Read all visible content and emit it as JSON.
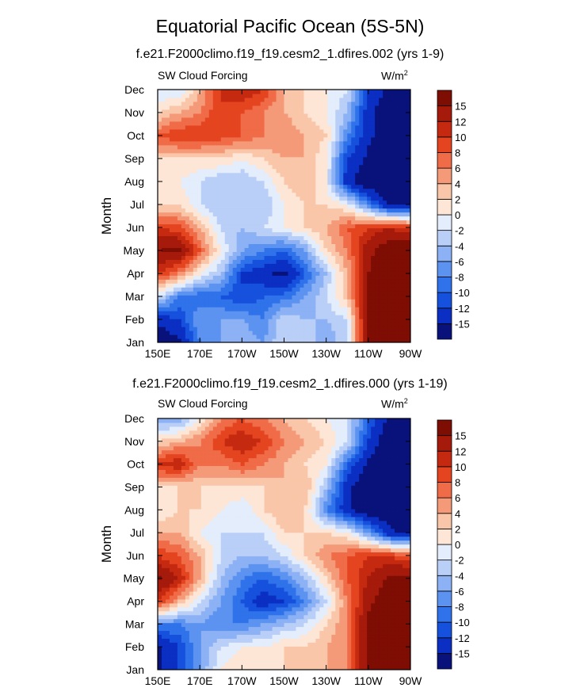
{
  "figure": {
    "title": "Equatorial Pacific Ocean (5S-5N)"
  },
  "legend": {
    "levels": [
      -15,
      -12,
      -10,
      -8,
      -6,
      -4,
      -2,
      0,
      2,
      4,
      6,
      8,
      10,
      12,
      15
    ],
    "labels": [
      "-15",
      "-12",
      "-10",
      "-8",
      "-6",
      "-4",
      "-2",
      "0",
      "2",
      "4",
      "6",
      "8",
      "10",
      "12",
      "15"
    ],
    "colors": [
      "#08127a",
      "#0b2fc2",
      "#1651dd",
      "#2f72ea",
      "#5c93f0",
      "#8cb1f4",
      "#b9cff7",
      "#e3edfb",
      "#fde6d6",
      "#fac6a9",
      "#f59a78",
      "#f06b47",
      "#e4441f",
      "#c52a10",
      "#a51a0a",
      "#7e0d04"
    ]
  },
  "chart_data": [
    {
      "type": "heatmap",
      "subtitle": "f.e21.F2000climo.f19_f19.cesm2_1.dfires.002 (yrs 1-9)",
      "left_label": "SW Cloud Forcing",
      "units_label": "W/m",
      "units_sup": "2",
      "ylabel": "Month",
      "xlabel": "",
      "x_ticks": [
        "150E",
        "170E",
        "170W",
        "150W",
        "130W",
        "110W",
        "90W"
      ],
      "x_values": [
        150,
        170,
        190,
        210,
        230,
        250,
        270
      ],
      "xlim": [
        150,
        270
      ],
      "y_ticks": [
        "Jan",
        "Feb",
        "Mar",
        "Apr",
        "May",
        "Jun",
        "Jul",
        "Aug",
        "Sep",
        "Oct",
        "Nov",
        "Dec"
      ],
      "z_rows": [
        [
          -18,
          -16,
          -8,
          -6,
          -4,
          -6,
          -2,
          -2,
          -6,
          -2,
          16,
          18,
          18
        ],
        [
          -14,
          -12,
          -6,
          -6,
          -6,
          -8,
          -2,
          -4,
          -4,
          -2,
          16,
          18,
          18
        ],
        [
          -2,
          -8,
          -10,
          -10,
          -12,
          -10,
          -9,
          -6,
          -2,
          3,
          16,
          18,
          18
        ],
        [
          10,
          6,
          0,
          -4,
          -12,
          -14,
          -16,
          -10,
          -4,
          4,
          15,
          18,
          18
        ],
        [
          15,
          16,
          8,
          0,
          -6,
          -8,
          -10,
          -6,
          2,
          6,
          14,
          18,
          18
        ],
        [
          10,
          9,
          4,
          -2,
          -4,
          -2,
          0,
          2,
          4,
          8,
          10,
          12,
          10
        ],
        [
          2,
          2,
          -2,
          -4,
          -4,
          -4,
          0,
          2,
          2,
          0,
          -8,
          -16,
          -16
        ],
        [
          0,
          0,
          -2,
          -4,
          -4,
          -2,
          2,
          4,
          0,
          -14,
          -18,
          -18,
          -18
        ],
        [
          2,
          2,
          2,
          2,
          0,
          2,
          4,
          4,
          0,
          -12,
          -16,
          -18,
          -18
        ],
        [
          8,
          10,
          10,
          9,
          8,
          6,
          6,
          4,
          2,
          -8,
          -14,
          -18,
          -18
        ],
        [
          2,
          4,
          6,
          10,
          8,
          6,
          4,
          2,
          0,
          -4,
          -14,
          -18,
          -18
        ],
        [
          -2,
          -2,
          4,
          10,
          12,
          10,
          4,
          2,
          0,
          -2,
          -12,
          -16,
          -18
        ]
      ]
    },
    {
      "type": "heatmap",
      "subtitle": "f.e21.F2000climo.f19_f19.cesm2_1.dfires.000 (yrs 1-19)",
      "left_label": "SW Cloud Forcing",
      "units_label": "W/m",
      "units_sup": "2",
      "ylabel": "Month",
      "xlabel": "",
      "x_ticks": [
        "150E",
        "170E",
        "170W",
        "150W",
        "130W",
        "110W",
        "90W"
      ],
      "x_values": [
        150,
        170,
        190,
        210,
        230,
        250,
        270
      ],
      "xlim": [
        150,
        270
      ],
      "y_ticks": [
        "Jan",
        "Feb",
        "Mar",
        "Apr",
        "May",
        "Jun",
        "Jul",
        "Aug",
        "Sep",
        "Oct",
        "Nov",
        "Dec"
      ],
      "z_rows": [
        [
          -16,
          -12,
          -6,
          0,
          2,
          0,
          2,
          2,
          4,
          6,
          16,
          18,
          18
        ],
        [
          -16,
          -12,
          -6,
          -2,
          0,
          0,
          2,
          2,
          4,
          6,
          16,
          18,
          18
        ],
        [
          -8,
          -8,
          -6,
          -8,
          -8,
          -6,
          -4,
          -2,
          2,
          6,
          16,
          18,
          18
        ],
        [
          10,
          4,
          -2,
          -6,
          -10,
          -14,
          -12,
          -8,
          -2,
          6,
          14,
          18,
          18
        ],
        [
          16,
          12,
          4,
          -4,
          -8,
          -10,
          -8,
          -4,
          2,
          8,
          12,
          16,
          16
        ],
        [
          10,
          8,
          4,
          -2,
          -4,
          -4,
          -2,
          2,
          6,
          8,
          10,
          10,
          8
        ],
        [
          4,
          4,
          0,
          -2,
          -2,
          -2,
          2,
          2,
          2,
          0,
          -6,
          -14,
          -16
        ],
        [
          0,
          2,
          2,
          0,
          -2,
          2,
          4,
          2,
          -8,
          -14,
          -18,
          -18,
          -18
        ],
        [
          2,
          2,
          2,
          2,
          2,
          2,
          4,
          4,
          -4,
          -14,
          -18,
          -18,
          -18
        ],
        [
          10,
          12,
          6,
          6,
          8,
          6,
          4,
          2,
          0,
          -10,
          -16,
          -18,
          -18
        ],
        [
          2,
          4,
          6,
          10,
          12,
          10,
          6,
          4,
          2,
          -2,
          -12,
          -18,
          -18
        ],
        [
          -6,
          -6,
          0,
          6,
          8,
          6,
          4,
          2,
          0,
          -2,
          -10,
          -16,
          -18
        ]
      ]
    }
  ]
}
